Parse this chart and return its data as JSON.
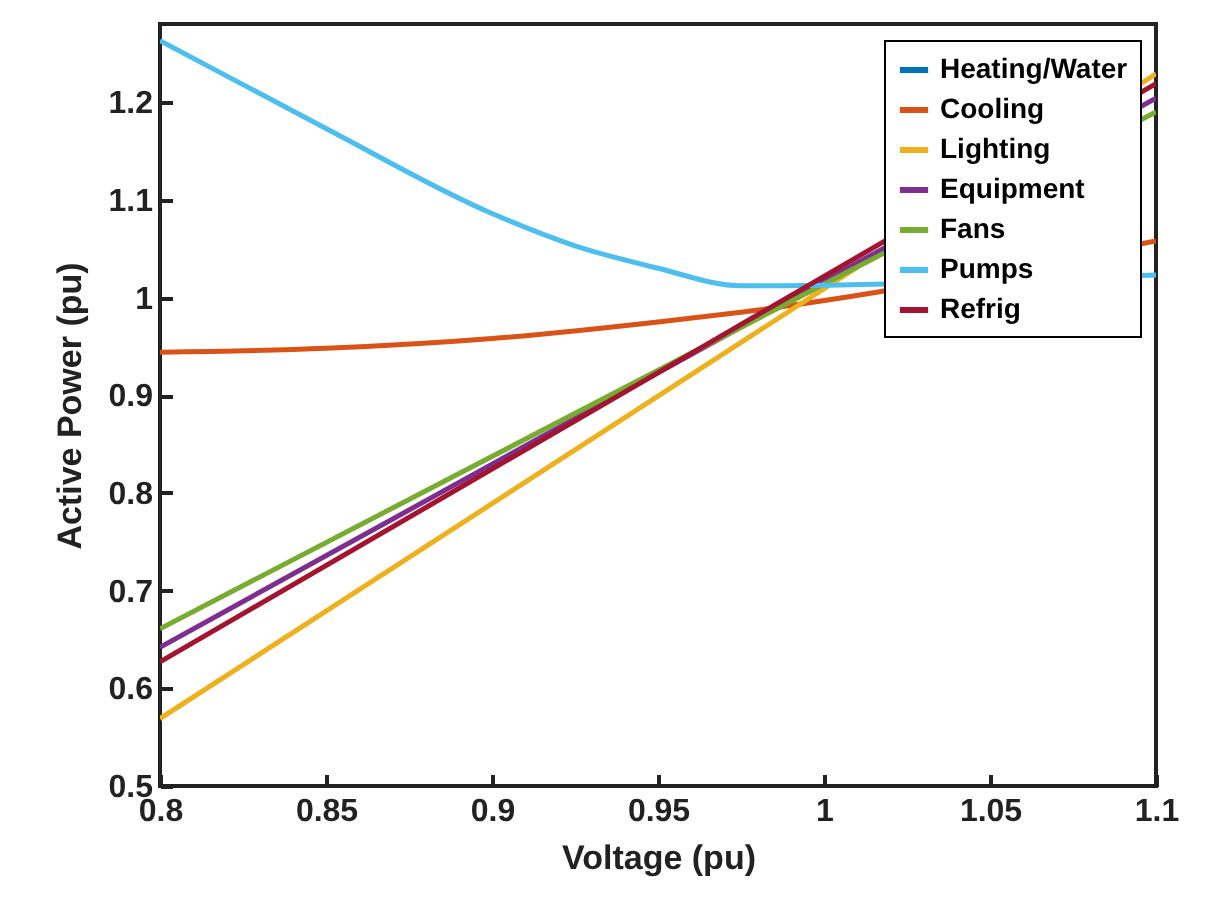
{
  "chart_data": {
    "type": "line",
    "xlabel": "Voltage (pu)",
    "ylabel": "Active Power (pu)",
    "xlim": [
      0.8,
      1.1
    ],
    "ylim": [
      0.5,
      1.28
    ],
    "xticks": [
      0.8,
      0.85,
      0.9,
      0.95,
      1,
      1.05,
      1.1
    ],
    "yticks": [
      0.5,
      0.6,
      0.7,
      0.8,
      0.9,
      1,
      1.1,
      1.2
    ],
    "grid": false,
    "legend": "top right",
    "line_style": "solid",
    "marker": "none",
    "series": [
      {
        "name": "Heating/Water",
        "color": "#0072bd"
      },
      {
        "name": "Cooling",
        "color": "#d95319",
        "x": [
          0.8,
          0.85,
          0.9,
          0.95,
          0.975,
          1.1
        ],
        "values": [
          0.944,
          0.948,
          0.958,
          0.975,
          0.985,
          1.058
        ]
      },
      {
        "name": "Lighting",
        "color": "#edb120",
        "x": [
          0.8,
          1.1
        ],
        "values": [
          0.569,
          1.229
        ]
      },
      {
        "name": "Equipment",
        "color": "#7e2f8e",
        "x": [
          0.8,
          1.1
        ],
        "values": [
          0.642,
          1.204
        ]
      },
      {
        "name": "Fans",
        "color": "#77ac30",
        "x": [
          0.8,
          1.1
        ],
        "values": [
          0.661,
          1.19
        ]
      },
      {
        "name": "Pumps",
        "color": "#4dbeee",
        "x": [
          0.8,
          0.85,
          0.9,
          0.925,
          0.95,
          0.975,
          1.1
        ],
        "values": [
          1.263,
          1.173,
          1.086,
          1.053,
          1.03,
          1.012,
          1.023
        ]
      },
      {
        "name": "Refrig",
        "color": "#a2142f",
        "x": [
          0.8,
          1.1
        ],
        "values": [
          0.627,
          1.219
        ]
      }
    ]
  }
}
